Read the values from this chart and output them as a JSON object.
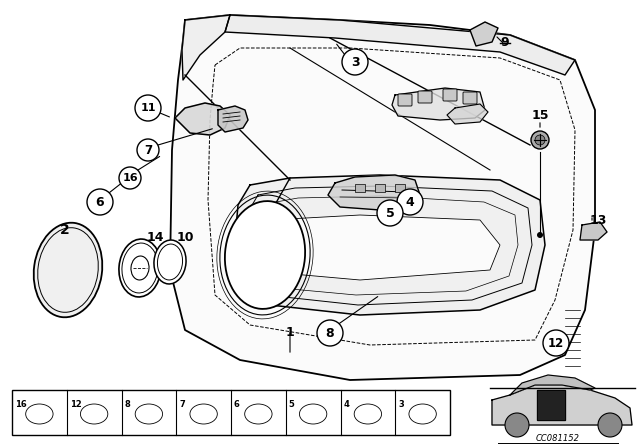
{
  "bg_color": "#ffffff",
  "fig_width": 6.4,
  "fig_height": 4.48,
  "dpi": 100,
  "line_color": "#000000",
  "text_color": "#000000",
  "footer_text": "CC081152",
  "bottom_bar_items": [
    "16",
    "12",
    "8",
    "7",
    "6",
    "5",
    "4",
    "3"
  ],
  "car_silhouette": true
}
